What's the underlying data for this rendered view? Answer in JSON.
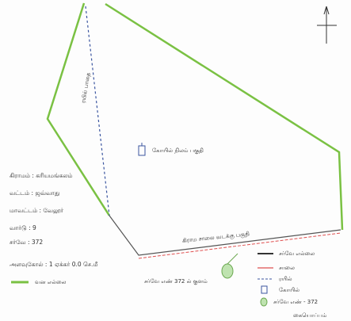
{
  "village_info": [
    "கிராமம் : கரியமங்கலம்",
    "வட்டம் : ஜவ்வாது",
    "மாவட்டம் : வேலூர்",
    "வார்டு : 9",
    "சர்வே : 372"
  ],
  "scale": "அளவுகோல் : 1 ஏக்கர் 0.0 செ.மீ",
  "forest_legend": "வன எல்லை",
  "map_labels": {
    "rail": "ரயில் பாதை",
    "temple": "கோயில் நிலம் பகுதி",
    "road": "கிராம சாலை வடக்கு பகுதி",
    "pond": "சர்வே எண் 372 ல் குளம்"
  },
  "legend": [
    "சர்வே எல்லை",
    "சாலை",
    "ரயில்",
    "கோயில்",
    "சர்வே எண் - 372"
  ],
  "signature": "கையொப்பம்"
}
